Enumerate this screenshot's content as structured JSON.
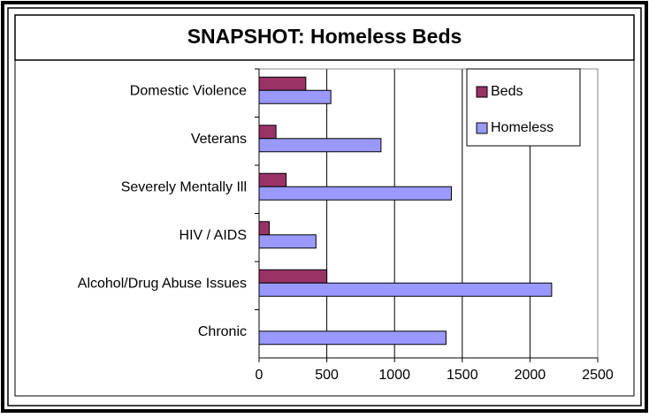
{
  "chart_data": {
    "type": "bar",
    "orientation": "horizontal",
    "title": "SNAPSHOT: Homeless Beds",
    "categories": [
      "Domestic Violence",
      "Veterans",
      "Severely Mentally Ill",
      "HIV / AIDS",
      "Alcohol/Drug Abuse Issues",
      "Chronic"
    ],
    "series": [
      {
        "name": "Beds",
        "color": "#993366",
        "values": [
          345,
          125,
          200,
          75,
          500,
          0
        ]
      },
      {
        "name": "Homeless",
        "color": "#9999ff",
        "values": [
          530,
          900,
          1420,
          420,
          2160,
          1380
        ]
      }
    ],
    "xlim": [
      0,
      2500
    ],
    "xticks": [
      0,
      500,
      1000,
      1500,
      2000,
      2500
    ],
    "grid": true,
    "legend": "upper right"
  }
}
